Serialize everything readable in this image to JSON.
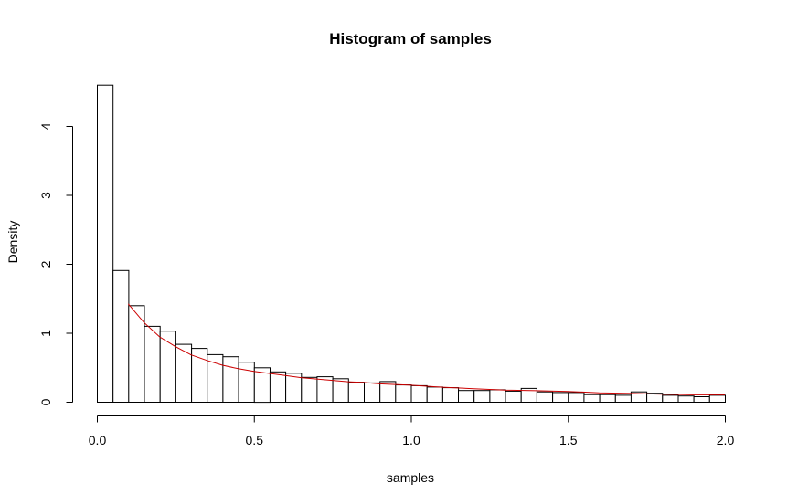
{
  "chart_data": {
    "type": "bar",
    "title": "Histogram of samples",
    "xlabel": "samples",
    "ylabel": "Density",
    "xlim": [
      0,
      2
    ],
    "ylim": [
      0,
      4.7
    ],
    "grid": false,
    "bin_width": 0.05,
    "bin_starts": [
      0.0,
      0.05,
      0.1,
      0.15,
      0.2,
      0.25,
      0.3,
      0.35,
      0.4,
      0.45,
      0.5,
      0.55,
      0.6,
      0.65,
      0.7,
      0.75,
      0.8,
      0.85,
      0.9,
      0.95,
      1.0,
      1.05,
      1.1,
      1.15,
      1.2,
      1.25,
      1.3,
      1.35,
      1.4,
      1.45,
      1.5,
      1.55,
      1.6,
      1.65,
      1.7,
      1.75,
      1.8,
      1.85,
      1.9,
      1.95
    ],
    "values": [
      4.6,
      1.91,
      1.4,
      1.1,
      1.03,
      0.84,
      0.78,
      0.69,
      0.66,
      0.58,
      0.5,
      0.44,
      0.42,
      0.36,
      0.37,
      0.34,
      0.29,
      0.28,
      0.3,
      0.25,
      0.24,
      0.22,
      0.21,
      0.17,
      0.17,
      0.18,
      0.16,
      0.2,
      0.15,
      0.14,
      0.14,
      0.11,
      0.11,
      0.1,
      0.15,
      0.13,
      0.1,
      0.09,
      0.08,
      0.1
    ],
    "x_ticks": [
      "0.0",
      "0.5",
      "1.0",
      "1.5",
      "2.0"
    ],
    "y_ticks": [
      "0",
      "1",
      "2",
      "3",
      "4"
    ],
    "curve": {
      "color": "#cc0000",
      "x": [
        0.1,
        0.15,
        0.2,
        0.25,
        0.3,
        0.35,
        0.4,
        0.45,
        0.5,
        0.55,
        0.6,
        0.65,
        0.7,
        0.75,
        0.8,
        0.85,
        0.9,
        0.95,
        1.0,
        1.1,
        1.2,
        1.3,
        1.4,
        1.5,
        1.6,
        1.7,
        1.8,
        1.9,
        2.0
      ],
      "y": [
        1.42,
        1.15,
        0.94,
        0.8,
        0.68,
        0.6,
        0.53,
        0.48,
        0.44,
        0.41,
        0.38,
        0.35,
        0.33,
        0.31,
        0.29,
        0.28,
        0.26,
        0.25,
        0.24,
        0.21,
        0.19,
        0.17,
        0.16,
        0.15,
        0.13,
        0.12,
        0.11,
        0.1,
        0.1
      ]
    }
  }
}
